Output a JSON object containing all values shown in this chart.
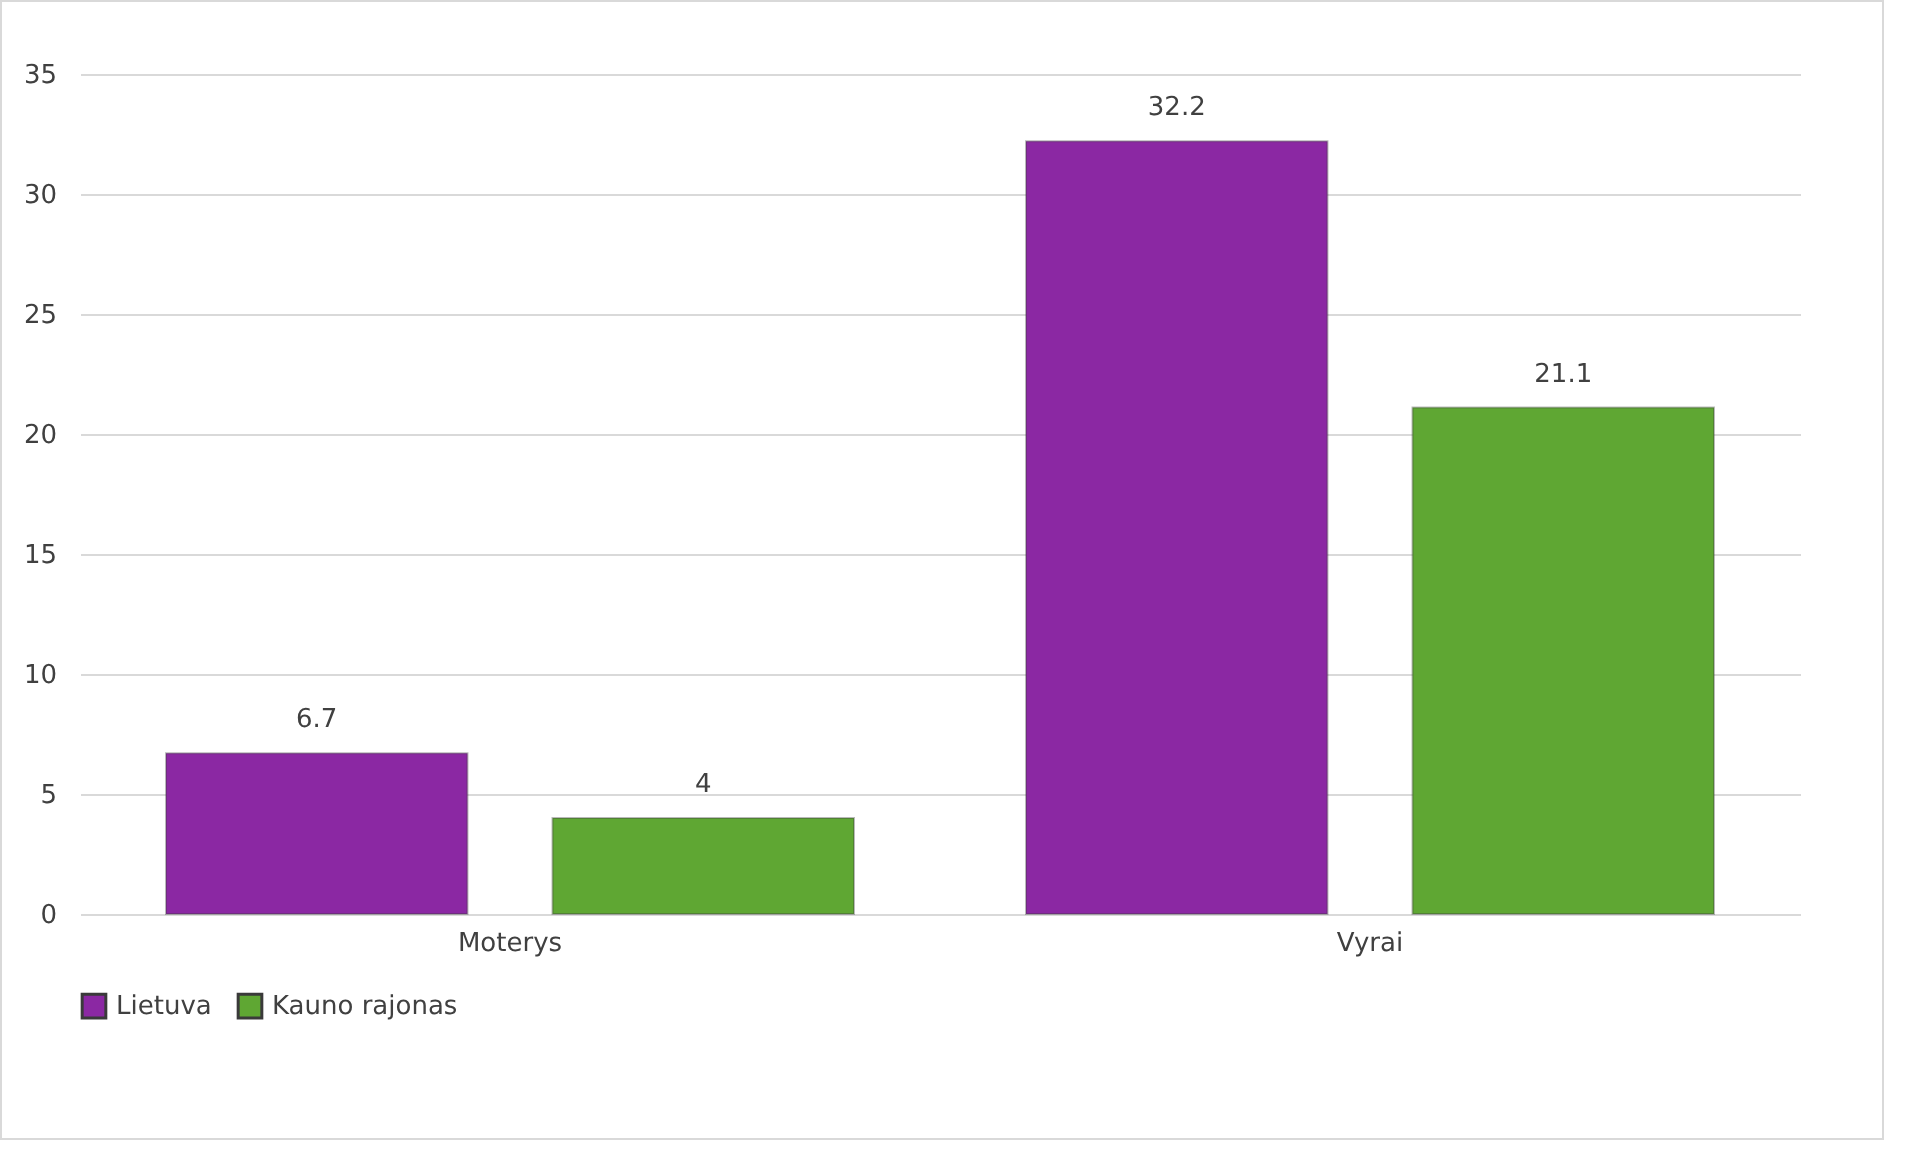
{
  "chart_data": {
    "type": "bar",
    "categories": [
      "Moterys",
      "Vyrai"
    ],
    "series": [
      {
        "name": "Lietuva",
        "color": "#8b28a3",
        "values": [
          6.7,
          32.2
        ]
      },
      {
        "name": "Kauno rajonas",
        "color": "#5fa733",
        "values": [
          4,
          21.1
        ]
      }
    ],
    "ylim": [
      0,
      35
    ],
    "yticks": [
      0,
      5,
      10,
      15,
      20,
      25,
      30,
      35
    ],
    "grid": "y",
    "legend": "bottom",
    "data_labels": true
  }
}
